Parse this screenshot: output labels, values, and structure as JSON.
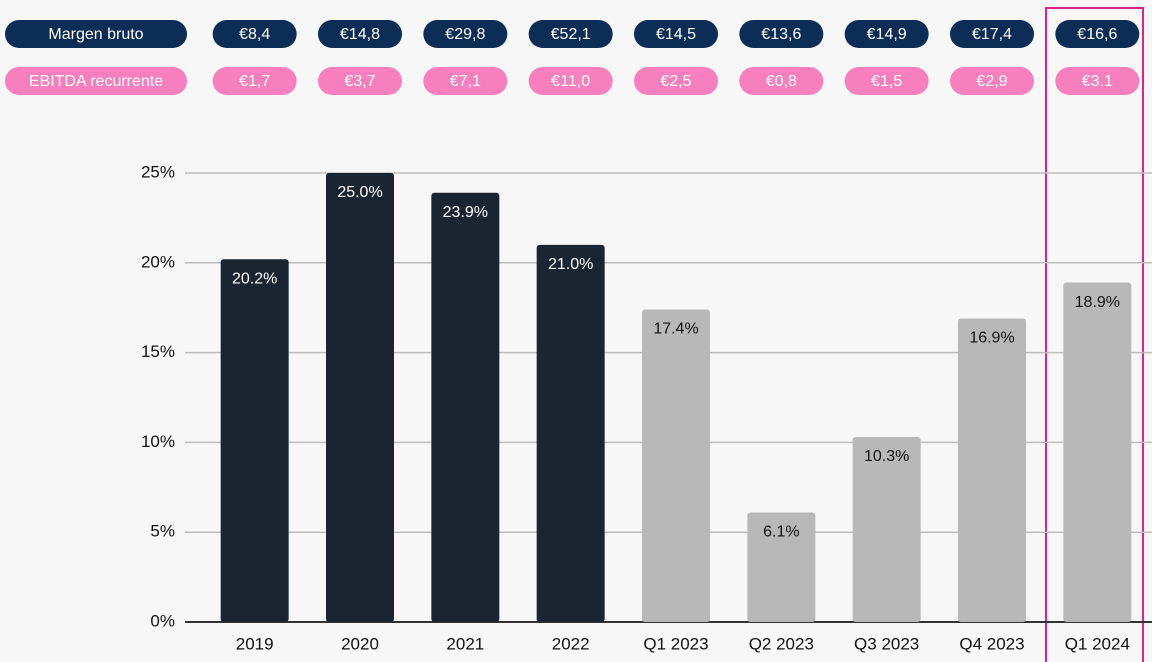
{
  "chart_data": {
    "type": "bar",
    "categories": [
      "2019",
      "2020",
      "2021",
      "2022",
      "Q1 2023",
      "Q2 2023",
      "Q3 2023",
      "Q4 2023",
      "Q1 2024"
    ],
    "values": [
      20.2,
      25.0,
      23.9,
      21.0,
      17.4,
      6.1,
      10.3,
      16.9,
      18.9
    ],
    "value_labels": [
      "20.2%",
      "25.0%",
      "23.9%",
      "21.0%",
      "17.4%",
      "6.1%",
      "10.3%",
      "16.9%",
      "18.9%"
    ],
    "colors": [
      "#1b2431",
      "#1b2431",
      "#1b2431",
      "#1b2431",
      "#b8b8b8",
      "#b8b8b8",
      "#b8b8b8",
      "#b8b8b8",
      "#b8b8b8"
    ],
    "ylim": [
      0,
      25
    ],
    "yticks": [
      {
        "value": 0,
        "label": "0%"
      },
      {
        "value": 5,
        "label": "5%"
      },
      {
        "value": 10,
        "label": "10%"
      },
      {
        "value": 15,
        "label": "15%"
      },
      {
        "value": 20,
        "label": "20%"
      },
      {
        "value": 25,
        "label": "25%"
      }
    ],
    "grid": true,
    "header_rows": [
      {
        "name": "Margen bruto",
        "color": "#0c2d55",
        "labels": [
          "€8,4",
          "€14,8",
          "€29,8",
          "€52,1",
          "€14,5",
          "€13,6",
          "€14,9",
          "€17,4",
          "€16,6"
        ]
      },
      {
        "name": "EBITDA recurrente",
        "color": "#f77fbe",
        "labels": [
          "€1,7",
          "€3,7",
          "€7,1",
          "€11,0",
          "€2,5",
          "€0,8",
          "€1,5",
          "€2,9",
          "€3.1"
        ]
      }
    ]
  }
}
